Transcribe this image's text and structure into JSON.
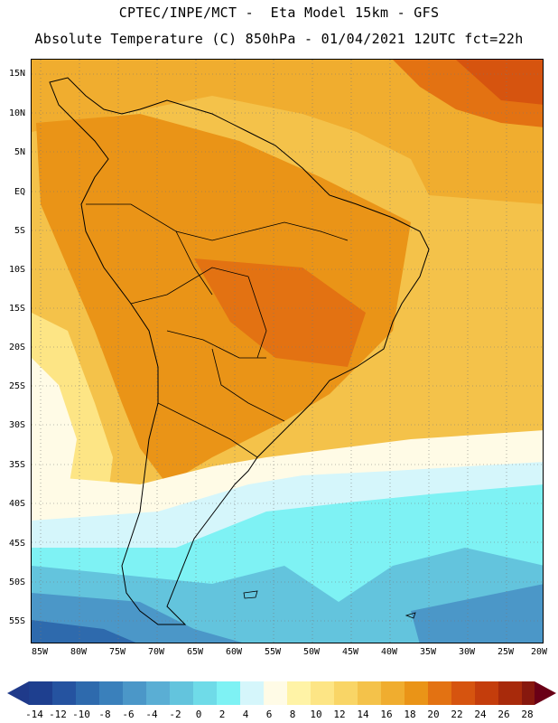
{
  "header": {
    "line1": "CPTEC/INPE/MCT -  Eta Model 15km - GFS",
    "line2": "Absolute Temperature (C) 850hPa - 01/04/2021 12UTC fct=22h"
  },
  "map": {
    "lat_labels": [
      "15N",
      "10N",
      "5N",
      "EQ",
      "5S",
      "10S",
      "15S",
      "20S",
      "25S",
      "30S",
      "35S",
      "40S",
      "45S",
      "50S",
      "55S"
    ],
    "lon_labels": [
      "85W",
      "80W",
      "75W",
      "70W",
      "65W",
      "60W",
      "55W",
      "50W",
      "45W",
      "40W",
      "35W",
      "30W",
      "25W",
      "20W"
    ]
  },
  "colorbar": {
    "levels": [
      "-14",
      "-12",
      "-10",
      "-8",
      "-6",
      "-4",
      "-2",
      "0",
      "2",
      "4",
      "6",
      "8",
      "10",
      "12",
      "14",
      "16",
      "18",
      "20",
      "22",
      "24",
      "26",
      "28"
    ],
    "colors": [
      "#1e3f8f",
      "#2553a0",
      "#2e6aad",
      "#3a80bb",
      "#4b97c8",
      "#5aaed4",
      "#63c4dd",
      "#6fdbe8",
      "#7ef2f4",
      "#d5f6fb",
      "#fffbe6",
      "#fff3a6",
      "#fde585",
      "#f9d566",
      "#f4c24a",
      "#f0ad2f",
      "#ea9417",
      "#e37212",
      "#d6540f",
      "#c43d0c",
      "#a82a0b",
      "#87180e",
      "#6a0b10"
    ],
    "low_arrow_color": "#1f3a8a",
    "high_arrow_color": "#6a0016"
  },
  "field_colors": {
    "deep_blue": "#2e6aad",
    "blue": "#4b97c8",
    "cyan": "#63c4dd",
    "light_cyan": "#7ef2f4",
    "pale_blue": "#d5f6fb",
    "cream": "#fffbe6",
    "light_yellow": "#fde585",
    "yellow": "#f4c24a",
    "orange_yellow": "#f0ad2f",
    "orange": "#ea9417",
    "dark_orange": "#e37212",
    "red_orange": "#d6540f"
  }
}
